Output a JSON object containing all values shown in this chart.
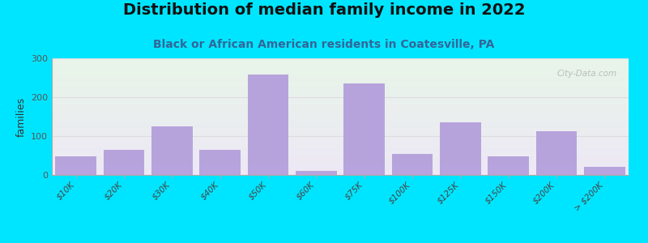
{
  "title": "Distribution of median family income in 2022",
  "subtitle": "Black or African American residents in Coatesville, PA",
  "ylabel": "families",
  "categories": [
    "$10K",
    "$20K",
    "$30K",
    "$40K",
    "$50K",
    "$60K",
    "$75K",
    "$100K",
    "$125K",
    "$150K",
    "$200K",
    "> $200K"
  ],
  "values": [
    48,
    65,
    125,
    65,
    258,
    10,
    235,
    55,
    135,
    48,
    113,
    20
  ],
  "bar_color": "#b39ddb",
  "bg_outer": "#00e5ff",
  "bg_inner_top": "#e8f5e9",
  "bg_inner_bottom": "#ede8f5",
  "ylim": [
    0,
    300
  ],
  "yticks": [
    0,
    100,
    200,
    300
  ],
  "title_fontsize": 14,
  "subtitle_fontsize": 10,
  "watermark": "City-Data.com"
}
